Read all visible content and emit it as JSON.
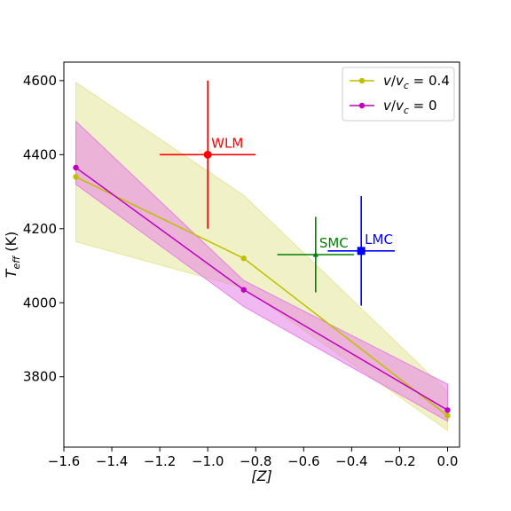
{
  "chart_data": {
    "type": "line",
    "xlabel": "[Z]",
    "ylabel": "T_eff (K)",
    "xlim": [
      -1.6,
      0.05
    ],
    "ylim": [
      3610,
      4650
    ],
    "xticks": [
      -1.6,
      -1.4,
      -1.2,
      -1.0,
      -0.8,
      -0.6,
      -0.4,
      -0.2,
      0.0
    ],
    "xtick_labels": [
      "−1.6",
      "−1.4",
      "−1.2",
      "−1.0",
      "−0.8",
      "−0.6",
      "−0.4",
      "−0.2",
      "0.0"
    ],
    "yticks": [
      3800,
      4000,
      4200,
      4400,
      4600
    ],
    "ytick_labels": [
      "3800",
      "4000",
      "4200",
      "4400",
      "4600"
    ],
    "grid": false,
    "legend_position": "top-right",
    "series": [
      {
        "name": "v/v_c = 0.4",
        "color": "#bfbf00",
        "band_color": "#e6e69a",
        "x": [
          -1.55,
          -0.85,
          0.0
        ],
        "y": [
          4340,
          4120,
          3695
        ],
        "band_lower": [
          4165,
          4040,
          3655
        ],
        "band_upper": [
          4595,
          4290,
          3760
        ]
      },
      {
        "name": "v/v_c = 0",
        "color": "#bf00bf",
        "band_color": "#e680e6",
        "x": [
          -1.55,
          -0.85,
          0.0
        ],
        "y": [
          4365,
          4035,
          3710
        ],
        "band_lower": [
          4320,
          3990,
          3680
        ],
        "band_upper": [
          4490,
          4060,
          3780
        ]
      }
    ],
    "points": [
      {
        "label": "WLM",
        "color": "#ff0000",
        "marker": "circle",
        "x": -1.0,
        "y": 4400,
        "xerr": 0.2,
        "yerr": 200
      },
      {
        "label": "SMC",
        "color": "#008000",
        "marker": "triangle",
        "x": -0.55,
        "y": 4130,
        "xerr": 0.16,
        "yerr": 102
      },
      {
        "label": "LMC",
        "color": "#0000ff",
        "marker": "square",
        "x": -0.36,
        "y": 4140,
        "xerr": 0.14,
        "yerr": 148
      }
    ]
  }
}
